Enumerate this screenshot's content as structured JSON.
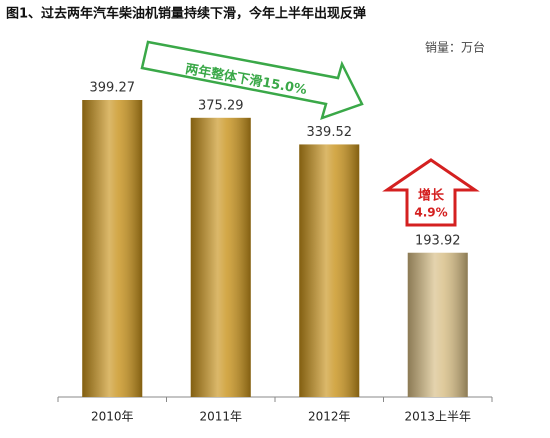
{
  "chart_data": {
    "type": "bar",
    "title": "图1、过去两年汽车柴油机销量持续下滑，今年上半年出现反弹",
    "unit_label": "销量：万台",
    "categories": [
      "2010年",
      "2011年",
      "2012年",
      "2013上半年"
    ],
    "values": [
      399.27,
      375.29,
      339.52,
      193.92
    ],
    "colors": [
      "#c8921a",
      "#c8921a",
      "#c8921a",
      "#d6bc82"
    ],
    "annotations": [
      "两年整体下滑15.0%",
      "增长",
      "4.9%"
    ]
  }
}
